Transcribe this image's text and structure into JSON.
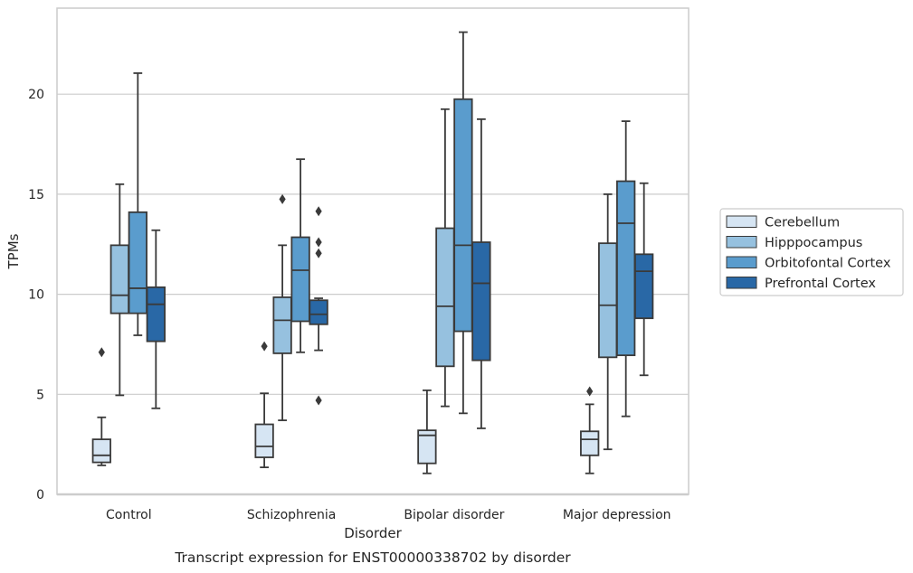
{
  "caption": "Transcript expression for ENST00000338702 by disorder",
  "chart_data": {
    "type": "box",
    "xlabel": "Disorder",
    "ylabel": "TPMs",
    "ylim": [
      0,
      24.3
    ],
    "yticks": [
      0,
      5,
      10,
      15,
      20
    ],
    "grid": "horizontal",
    "legend_position": "right",
    "categories": [
      "Control",
      "Schizophrenia",
      "Bipolar disorder",
      "Major depression"
    ],
    "series": [
      {
        "name": "Cerebellum",
        "color": "#d6e5f3",
        "boxes": [
          {
            "whislo": 1.45,
            "q1": 1.6,
            "med": 1.95,
            "q3": 2.75,
            "whishi": 3.85,
            "fliers": [
              7.1
            ]
          },
          {
            "whislo": 1.35,
            "q1": 1.85,
            "med": 2.4,
            "q3": 3.5,
            "whishi": 5.05,
            "fliers": [
              7.4
            ]
          },
          {
            "whislo": 1.05,
            "q1": 1.55,
            "med": 2.95,
            "q3": 3.2,
            "whishi": 5.2,
            "fliers": []
          },
          {
            "whislo": 1.05,
            "q1": 1.95,
            "med": 2.75,
            "q3": 3.15,
            "whishi": 4.5,
            "fliers": [
              5.15
            ]
          }
        ]
      },
      {
        "name": "Hipppocampus",
        "color": "#96c1df",
        "boxes": [
          {
            "whislo": 4.95,
            "q1": 9.05,
            "med": 9.95,
            "q3": 12.45,
            "whishi": 15.5,
            "fliers": []
          },
          {
            "whislo": 3.7,
            "q1": 7.05,
            "med": 8.7,
            "q3": 9.85,
            "whishi": 12.45,
            "fliers": [
              14.75
            ]
          },
          {
            "whislo": 4.4,
            "q1": 6.4,
            "med": 9.4,
            "q3": 13.3,
            "whishi": 19.25,
            "fliers": []
          },
          {
            "whislo": 2.25,
            "q1": 6.85,
            "med": 9.45,
            "q3": 12.55,
            "whishi": 15.0,
            "fliers": []
          }
        ]
      },
      {
        "name": "Orbitofontal Cortex",
        "color": "#5a9ccd",
        "boxes": [
          {
            "whislo": 7.95,
            "q1": 9.05,
            "med": 10.3,
            "q3": 14.1,
            "whishi": 21.05,
            "fliers": []
          },
          {
            "whislo": 7.1,
            "q1": 8.65,
            "med": 11.2,
            "q3": 12.85,
            "whishi": 16.75,
            "fliers": []
          },
          {
            "whislo": 4.05,
            "q1": 8.15,
            "med": 12.45,
            "q3": 19.75,
            "whishi": 23.1,
            "fliers": []
          },
          {
            "whislo": 3.9,
            "q1": 6.95,
            "med": 13.55,
            "q3": 15.65,
            "whishi": 18.65,
            "fliers": []
          }
        ]
      },
      {
        "name": "Prefrontal Cortex",
        "color": "#2968a6",
        "boxes": [
          {
            "whislo": 4.3,
            "q1": 7.65,
            "med": 9.5,
            "q3": 10.35,
            "whishi": 13.2,
            "fliers": []
          },
          {
            "whislo": 7.2,
            "q1": 8.5,
            "med": 9.0,
            "q3": 9.7,
            "whishi": 9.8,
            "fliers": [
              4.7,
              12.05,
              12.6,
              14.15
            ]
          },
          {
            "whislo": 3.3,
            "q1": 6.7,
            "med": 10.55,
            "q3": 12.6,
            "whishi": 18.75,
            "fliers": []
          },
          {
            "whislo": 5.95,
            "q1": 8.8,
            "med": 11.15,
            "q3": 12.0,
            "whishi": 15.55,
            "fliers": []
          }
        ]
      }
    ]
  }
}
